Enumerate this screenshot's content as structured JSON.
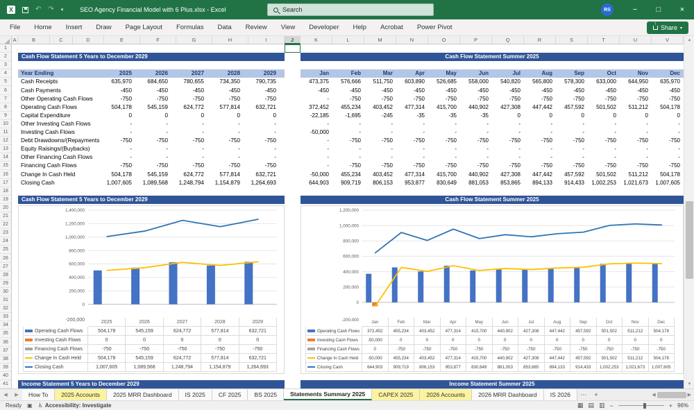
{
  "window": {
    "title": "SEO Agency Financial Model with 6 Plus.xlsx  -  Excel",
    "search_placeholder": "Search",
    "avatar_initials": "RS"
  },
  "ribbon": {
    "tabs": [
      "File",
      "Home",
      "Insert",
      "Draw",
      "Page Layout",
      "Formulas",
      "Data",
      "Review",
      "View",
      "Developer",
      "Help",
      "Acrobat",
      "Power Pivot"
    ],
    "share_label": "Share"
  },
  "grid": {
    "column_letters": [
      "A",
      "B",
      "C",
      "D",
      "E",
      "F",
      "G",
      "H",
      "I",
      "J",
      "K",
      "L",
      "M",
      "N",
      "O",
      "P",
      "Q",
      "R",
      "S",
      "T",
      "U",
      "V"
    ],
    "selected_column": "J",
    "row_count": 41
  },
  "statement_table": {
    "annual": {
      "section_title": "Cash Flow Statement 5 Years to December 2029",
      "header_label": "Year Ending",
      "columns": [
        "2025",
        "2026",
        "2027",
        "2028",
        "2029"
      ],
      "rows": [
        {
          "label": "Cash Receipts",
          "values": [
            "635,970",
            "684,650",
            "780,655",
            "734,350",
            "790,735"
          ]
        },
        {
          "label": "Cash Payments",
          "values": [
            "-450",
            "-450",
            "-450",
            "-450",
            "-450"
          ]
        },
        {
          "label": "Other Operating Cash Flows",
          "values": [
            "-750",
            "-750",
            "-750",
            "-750",
            "-750"
          ]
        },
        {
          "label": "Operating Cash Flows",
          "values": [
            "504,178",
            "545,159",
            "624,772",
            "577,814",
            "632,721"
          ]
        },
        {
          "label": "Capital Expenditure",
          "values": [
            "0",
            "0",
            "0",
            "0",
            "0"
          ]
        },
        {
          "label": "Other Investing Cash Flows",
          "values": [
            "-",
            "-",
            "-",
            "-",
            "-"
          ]
        },
        {
          "label": "Investing Cash Flows",
          "values": [
            "-",
            "-",
            "-",
            "-",
            "-"
          ]
        },
        {
          "label": "Debt Drawdowns/(Repayments",
          "values": [
            "-750",
            "-750",
            "-750",
            "-750",
            "-750"
          ]
        },
        {
          "label": "Equity Raisings/(Buybacks)",
          "values": [
            "-",
            "-",
            "-",
            "-",
            "-"
          ]
        },
        {
          "label": "Other Financing Cash Flows",
          "values": [
            "-",
            "-",
            "-",
            "-",
            "-"
          ]
        },
        {
          "label": "Financing Cash Flows",
          "values": [
            "-750",
            "-750",
            "-750",
            "-750",
            "-750"
          ]
        },
        {
          "label": "Change In Cash Held",
          "values": [
            "504,178",
            "545,159",
            "624,772",
            "577,814",
            "632,721"
          ]
        },
        {
          "label": "Closing Cash",
          "values": [
            "1,007,605",
            "1,089,568",
            "1,248,794",
            "1,154,879",
            "1,264,693"
          ]
        }
      ]
    },
    "monthly": {
      "section_title": "Cash Flow Statement Summer 2025",
      "columns": [
        "Jan",
        "Feb",
        "Mar",
        "Apr",
        "May",
        "Jun",
        "Jul",
        "Aug",
        "Sep",
        "Oct",
        "Nov",
        "Dec"
      ],
      "rows": [
        {
          "label": "Cash Receipts",
          "values": [
            "473,375",
            "576,666",
            "511,750",
            "603,890",
            "526,685",
            "558,000",
            "540,820",
            "565,800",
            "578,300",
            "633,000",
            "644,950",
            "635,970"
          ]
        },
        {
          "label": "Cash Payments",
          "values": [
            "-450",
            "-450",
            "-450",
            "-450",
            "-450",
            "-450",
            "-450",
            "-450",
            "-450",
            "-450",
            "-450",
            "-450"
          ]
        },
        {
          "label": "Other Operating Cash Flows",
          "values": [
            "-",
            "-750",
            "-750",
            "-750",
            "-750",
            "-750",
            "-750",
            "-750",
            "-750",
            "-750",
            "-750",
            "-750"
          ]
        },
        {
          "label": "Operating Cash Flows",
          "values": [
            "372,452",
            "455,234",
            "403,452",
            "477,314",
            "415,700",
            "440,902",
            "427,308",
            "447,442",
            "457,592",
            "501,502",
            "511,212",
            "504,178"
          ]
        },
        {
          "label": "Capital Expenditure",
          "values": [
            "-22,185",
            "-1,695",
            "-245",
            "-35",
            "-35",
            "-35",
            "0",
            "0",
            "0",
            "0",
            "0",
            "0"
          ]
        },
        {
          "label": "Other Investing Cash Flows",
          "values": [
            "-",
            "-",
            "-",
            "-",
            "-",
            "-",
            "-",
            "-",
            "-",
            "-",
            "-",
            "-"
          ]
        },
        {
          "label": "Investing Cash Flows",
          "values": [
            "-50,000",
            "-",
            "-",
            "-",
            "-",
            "-",
            "-",
            "-",
            "-",
            "-",
            "-",
            "-"
          ]
        },
        {
          "label": "Debt Drawdowns/(Repayments",
          "values": [
            "-",
            "-750",
            "-750",
            "-750",
            "-750",
            "-750",
            "-750",
            "-750",
            "-750",
            "-750",
            "-750",
            "-750"
          ]
        },
        {
          "label": "Equity Raisings/(Buybacks)",
          "values": [
            "-",
            "-",
            "-",
            "-",
            "-",
            "-",
            "-",
            "-",
            "-",
            "-",
            "-",
            "-"
          ]
        },
        {
          "label": "Other Financing Cash Flows",
          "values": [
            "-",
            "-",
            "-",
            "-",
            "-",
            "-",
            "-",
            "-",
            "-",
            "-",
            "-",
            "-"
          ]
        },
        {
          "label": "Financing Cash Flows",
          "values": [
            "-",
            "-750",
            "-750",
            "-750",
            "-750",
            "-750",
            "-750",
            "-750",
            "-750",
            "-750",
            "-750",
            "-750"
          ]
        },
        {
          "label": "Change In Cash Held",
          "values": [
            "-50,000",
            "455,234",
            "403,452",
            "477,314",
            "415,700",
            "440,902",
            "427,308",
            "447,442",
            "457,592",
            "501,502",
            "511,212",
            "504,178"
          ]
        },
        {
          "label": "Closing Cash",
          "values": [
            "644,903",
            "909,719",
            "806,153",
            "953,877",
            "830,649",
            "881,053",
            "853,865",
            "894,133",
            "914,433",
            "1,002,253",
            "1,021,673",
            "1,007,605"
          ]
        }
      ]
    },
    "next_section": {
      "left": "Income Statement 5 Years to December 2029",
      "right": "Income Statement Summer 2025"
    }
  },
  "chart_data": [
    {
      "type": "bar",
      "subtype": "bar-line-combo",
      "title": "Cash Flow Statement 5 Years to December 2029",
      "categories": [
        "2025",
        "2026",
        "2027",
        "2028",
        "2029"
      ],
      "ylim": [
        -200000,
        1400000
      ],
      "ytick_step": 200000,
      "grid": true,
      "legend_position": "data-table-below",
      "series": [
        {
          "name": "Operating Cash Flows",
          "type": "bar",
          "color": "#4472C4",
          "values": [
            504178,
            545159,
            624772,
            577814,
            632721
          ],
          "display": [
            "504,178",
            "545,159",
            "624,772",
            "577,814",
            "632,721"
          ]
        },
        {
          "name": "Investing Cash Flows",
          "type": "bar",
          "color": "#ED7D31",
          "values": [
            0,
            0,
            0,
            0,
            0
          ],
          "display": [
            "0",
            "0",
            "0",
            "0",
            "0"
          ]
        },
        {
          "name": "Financing Cash Flows",
          "type": "bar",
          "color": "#A5A5A5",
          "values": [
            -750,
            -750,
            -750,
            -750,
            -750
          ],
          "display": [
            "-750",
            "-750",
            "-750",
            "-750",
            "-750"
          ]
        },
        {
          "name": "Change In Cash Held",
          "type": "line",
          "color": "#FFC000",
          "values": [
            504178,
            545159,
            624772,
            577814,
            632721
          ],
          "display": [
            "504,178",
            "545,159",
            "624,772",
            "577,814",
            "632,721"
          ]
        },
        {
          "name": "Closing Cash",
          "type": "line",
          "color": "#2E75B6",
          "values": [
            1007605,
            1089568,
            1248794,
            1154879,
            1264693
          ],
          "display": [
            "1,007,605",
            "1,089,568",
            "1,248,794",
            "1,154,879",
            "1,264,693"
          ]
        }
      ]
    },
    {
      "type": "bar",
      "subtype": "bar-line-combo",
      "title": "Cash Flow Statement Summer 2025",
      "categories": [
        "Jan",
        "Feb",
        "Mar",
        "Apr",
        "May",
        "Jun",
        "Jul",
        "Aug",
        "Sep",
        "Oct",
        "Nov",
        "Dec"
      ],
      "ylim": [
        -200000,
        1200000
      ],
      "ytick_step": 200000,
      "grid": true,
      "legend_position": "data-table-below",
      "series": [
        {
          "name": "Operating Cash Flows",
          "type": "bar",
          "color": "#4472C4",
          "values": [
            372452,
            455234,
            403452,
            477314,
            415700,
            440902,
            427308,
            447442,
            457592,
            501502,
            511212,
            504178
          ],
          "display": [
            "372,452",
            "455,234",
            "403,452",
            "477,314",
            "415,700",
            "440,902",
            "427,308",
            "447,442",
            "457,592",
            "501,502",
            "511,212",
            "504,178"
          ]
        },
        {
          "name": "Investing Cash Flows",
          "type": "bar",
          "color": "#ED7D31",
          "values": [
            -50000,
            0,
            0,
            0,
            0,
            0,
            0,
            0,
            0,
            0,
            0,
            0
          ],
          "display": [
            "-50,000",
            "0",
            "0",
            "0",
            "0",
            "0",
            "0",
            "0",
            "0",
            "0",
            "0",
            "0"
          ]
        },
        {
          "name": "Financing Cash Flows",
          "type": "bar",
          "color": "#A5A5A5",
          "values": [
            0,
            -750,
            -750,
            -750,
            -750,
            -750,
            -750,
            -750,
            -750,
            -750,
            -750,
            -750
          ],
          "display": [
            "0",
            "-750",
            "-750",
            "-750",
            "-750",
            "-750",
            "-750",
            "-750",
            "-750",
            "-750",
            "-750",
            "-750"
          ]
        },
        {
          "name": "Change In Cash Held",
          "type": "line",
          "color": "#FFC000",
          "values": [
            -50000,
            455234,
            403452,
            477314,
            415700,
            440902,
            427308,
            447442,
            457592,
            501502,
            511212,
            504178
          ],
          "display": [
            "-50,000",
            "455,234",
            "403,452",
            "477,314",
            "415,700",
            "440,902",
            "427,308",
            "447,442",
            "457,592",
            "501,502",
            "511,212",
            "504,178"
          ]
        },
        {
          "name": "Closing Cash",
          "type": "line",
          "color": "#2E75B6",
          "values": [
            644903,
            909719,
            806153,
            953877,
            830649,
            881053,
            853865,
            894133,
            914433,
            1002253,
            1021673,
            1007605
          ],
          "display": [
            "644,903",
            "909,719",
            "806,153",
            "953,877",
            "830,649",
            "881,053",
            "853,865",
            "894,133",
            "914,433",
            "1,002,253",
            "1,021,673",
            "1,007,605"
          ]
        }
      ]
    }
  ],
  "sheet_tabs": {
    "items": [
      {
        "label": "How To"
      },
      {
        "label": "2025 Accounts",
        "color": "yellow"
      },
      {
        "label": "2025 MRR Dashboard"
      },
      {
        "label": "IS 2025"
      },
      {
        "label": "CF 2025"
      },
      {
        "label": "BS 2025"
      },
      {
        "label": "Statements Summary 2025",
        "active": true
      },
      {
        "label": "CAPEX 2025",
        "color": "yellow"
      },
      {
        "label": "2026 Accounts",
        "color": "yellow"
      },
      {
        "label": "2026 MRR Dashboard"
      },
      {
        "label": "IS 2026"
      }
    ]
  },
  "status_bar": {
    "ready_label": "Ready",
    "accessibility_label": "Accessibility: Investigate",
    "zoom_level": "96%"
  },
  "colors": {
    "titlebar_green": "#217346",
    "section_header_blue": "#2F5597",
    "column_band_blue": "#B4C6E7",
    "band_text_navy": "#1F3864",
    "tab_highlight_yellow": "#FBF3A0",
    "active_tab_green": "#217346"
  }
}
